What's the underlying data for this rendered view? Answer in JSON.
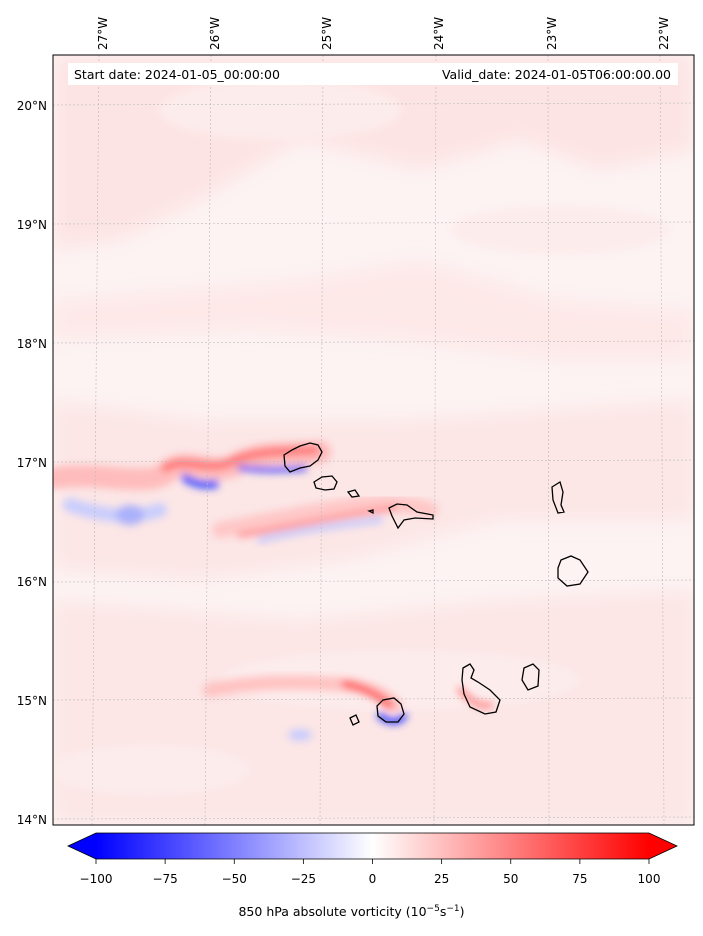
{
  "map": {
    "start_label": "Start date: 2024-01-05_00:00:00",
    "valid_label": "Valid_date: 2024-01-05T06:00:00.00",
    "lon_ticks": [
      "27°W",
      "26°W",
      "25°W",
      "24°W",
      "23°W",
      "22°W"
    ],
    "lat_ticks": [
      "20°N",
      "19°N",
      "18°N",
      "17°N",
      "16°N",
      "15°N",
      "14°N"
    ],
    "features": [
      "Cape Verde islands (coastlines)",
      "vorticity shear lines west of islands"
    ]
  },
  "colorbar": {
    "ticks": [
      "−100",
      "−75",
      "−50",
      "−25",
      "0",
      "25",
      "50",
      "75",
      "100"
    ],
    "min": -100,
    "max": 100,
    "low_color": "#0000ff",
    "mid_color": "#ffffff",
    "high_color": "#ff0000",
    "label_prefix": "850 hPa absolute vorticity (10",
    "label_exp1": "−5",
    "label_mid": "s",
    "label_exp2": "−1",
    "label_suffix": ")"
  }
}
